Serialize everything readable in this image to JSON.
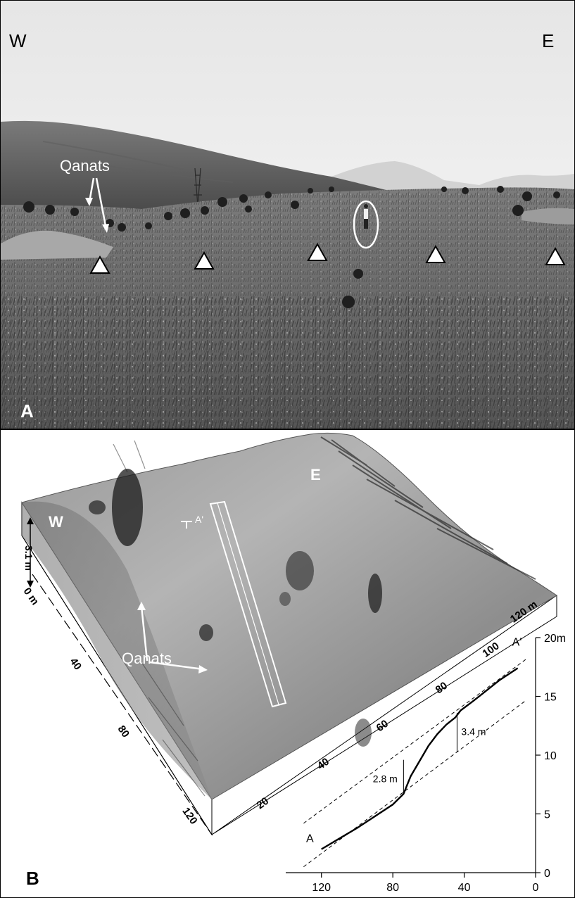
{
  "panel_a": {
    "label": "A",
    "west": "W",
    "east": "E",
    "qanats_label": "Qanats"
  },
  "panel_b": {
    "label": "B",
    "west": "W",
    "east": "E",
    "qanats_label": "Qanats",
    "relief_label": "3.1 m",
    "section_start": "A",
    "section_end": "A'",
    "left_axis_ticks": [
      "0 m",
      "40",
      "80",
      "120"
    ],
    "front_axis_ticks": [
      "20",
      "40",
      "60",
      "80",
      "100",
      "120 m"
    ]
  },
  "chart_data": {
    "type": "line",
    "x_ticks": [
      "120",
      "80",
      "40",
      "0"
    ],
    "y_ticks": [
      "0",
      "5",
      "10",
      "15",
      "20m"
    ],
    "xlim": [
      140,
      0
    ],
    "ylim": [
      0,
      20
    ],
    "profile_x": [
      120,
      110,
      100,
      90,
      80,
      74,
      70,
      65,
      60,
      55,
      50,
      45,
      42,
      35,
      30,
      20,
      10
    ],
    "profile_y": [
      2,
      2.9,
      3.8,
      4.8,
      5.8,
      6.7,
      8.2,
      9.5,
      10.8,
      11.8,
      12.6,
      13.2,
      13.8,
      14.6,
      15.2,
      16.4,
      17.4
    ],
    "start_label": "A",
    "end_label": "A'",
    "offset_1": "2.8 m",
    "offset_2": "3.4 m"
  }
}
